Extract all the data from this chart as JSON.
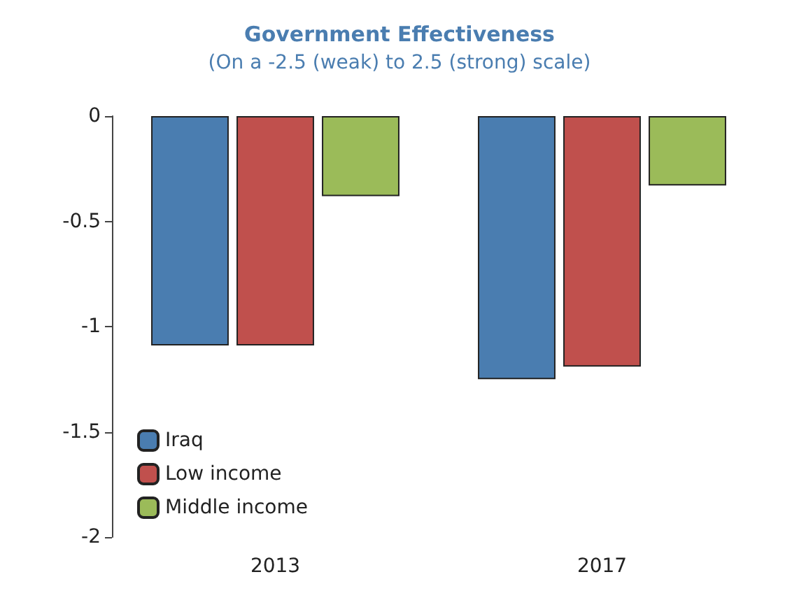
{
  "chart_data": {
    "type": "bar",
    "title": "Government Effectiveness",
    "subtitle": "(On a -2.5 (weak) to 2.5 (strong) scale)",
    "categories": [
      "2013",
      "2017"
    ],
    "series": [
      {
        "name": "Iraq",
        "color": "#4a7db0",
        "values": [
          -1.09,
          -1.25
        ]
      },
      {
        "name": "Low income",
        "color": "#c0504d",
        "values": [
          -1.09,
          -1.19
        ]
      },
      {
        "name": "Middle income",
        "color": "#9bbb59",
        "values": [
          -0.38,
          -0.33
        ]
      }
    ],
    "ylim": [
      -2,
      0
    ],
    "yticks": [
      {
        "value": -2,
        "label": "-2"
      },
      {
        "value": -1.5,
        "label": "-1.5"
      },
      {
        "value": -1,
        "label": "-1"
      },
      {
        "value": -0.5,
        "label": "-0.5"
      },
      {
        "value": 0,
        "label": "0"
      }
    ],
    "grid": false,
    "legend": "bottom left"
  }
}
